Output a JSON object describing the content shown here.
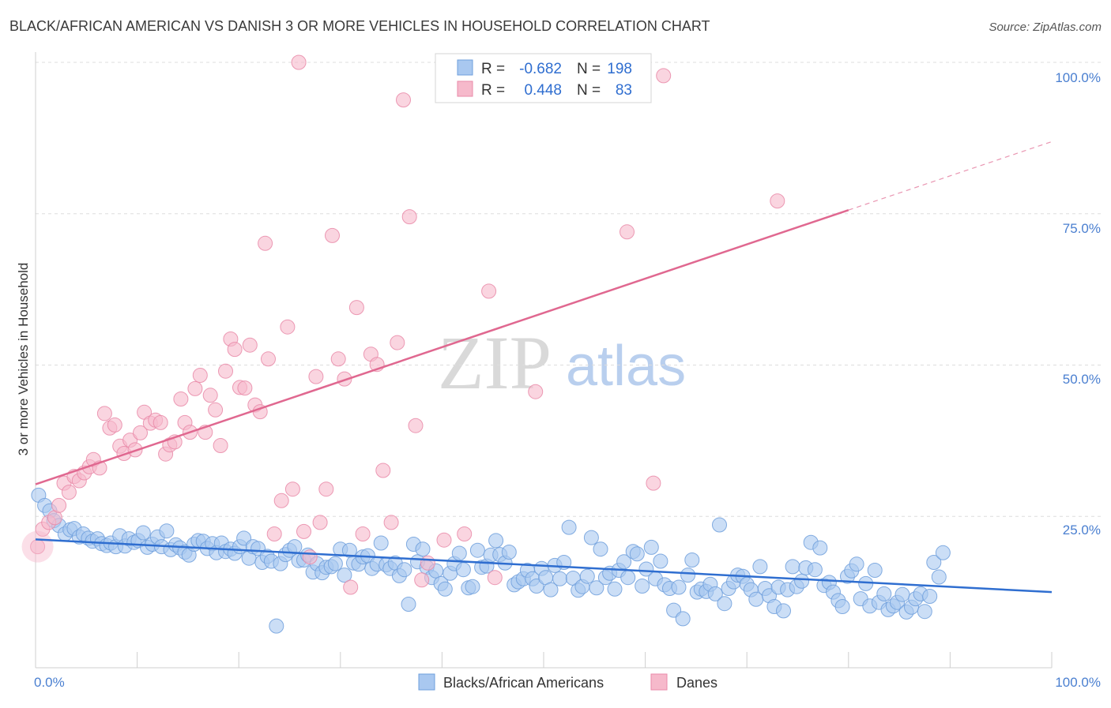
{
  "title": "BLACK/AFRICAN AMERICAN VS DANISH 3 OR MORE VEHICLES IN HOUSEHOLD CORRELATION CHART",
  "source": "Source: ZipAtlas.com",
  "watermark": {
    "zip": "ZIP",
    "atlas": "atlas"
  },
  "legend": {
    "r_label": "R =",
    "n_label": "N =",
    "rows": [
      {
        "r": "-0.682",
        "n": "198"
      },
      {
        "r": "0.448",
        "n": "83"
      }
    ]
  },
  "colors": {
    "blue_fill": "#a9c8f0",
    "blue_stroke": "#6e9fdc",
    "blue_line": "#2f6ed0",
    "pink_fill": "#f6b9cb",
    "pink_stroke": "#e98aa8",
    "pink_line": "#e06890",
    "grid": "#dddddd",
    "tick_text": "#4a7fd0"
  },
  "chart_data": {
    "type": "scatter",
    "xlabel": "",
    "ylabel": "3 or more Vehicles in Household",
    "xlim": [
      0,
      100
    ],
    "ylim": [
      0,
      100
    ],
    "x_tick_labels": [
      "0.0%",
      "100.0%"
    ],
    "y_tick_labels": [
      "25.0%",
      "50.0%",
      "75.0%",
      "100.0%"
    ],
    "y_ticks": [
      25,
      50,
      75,
      100
    ],
    "grid": true,
    "legend_position": "top-center",
    "series": [
      {
        "name": "Blacks/African Americans",
        "color": "#a9c8f0",
        "trend": {
          "x": [
            0,
            100
          ],
          "y": [
            21.2,
            12.5
          ],
          "extrapolated_from": 100
        },
        "points": [
          [
            0.3,
            28.5
          ],
          [
            0.9,
            26.8
          ],
          [
            1.4,
            25.9
          ],
          [
            1.8,
            24.3
          ],
          [
            2.3,
            23.5
          ],
          [
            2.9,
            22.1
          ],
          [
            3.4,
            22.8
          ],
          [
            3.8,
            23.0
          ],
          [
            4.3,
            21.6
          ],
          [
            4.7,
            22.1
          ],
          [
            5.2,
            21.4
          ],
          [
            5.6,
            20.9
          ],
          [
            6.1,
            21.3
          ],
          [
            6.5,
            20.5
          ],
          [
            7.0,
            20.2
          ],
          [
            7.4,
            20.6
          ],
          [
            7.9,
            20.0
          ],
          [
            8.3,
            21.8
          ],
          [
            8.8,
            20.1
          ],
          [
            9.2,
            21.3
          ],
          [
            9.7,
            20.7
          ],
          [
            10.1,
            21.0
          ],
          [
            10.6,
            22.3
          ],
          [
            11.0,
            19.9
          ],
          [
            11.5,
            20.4
          ],
          [
            12.0,
            21.6
          ],
          [
            12.4,
            20.0
          ],
          [
            12.9,
            22.6
          ],
          [
            13.3,
            19.5
          ],
          [
            13.8,
            20.3
          ],
          [
            14.2,
            19.8
          ],
          [
            14.7,
            19.1
          ],
          [
            15.1,
            18.6
          ],
          [
            15.6,
            20.4
          ],
          [
            16.0,
            21.0
          ],
          [
            16.5,
            20.9
          ],
          [
            16.9,
            19.7
          ],
          [
            17.4,
            20.5
          ],
          [
            17.8,
            19.0
          ],
          [
            18.3,
            20.6
          ],
          [
            18.7,
            19.2
          ],
          [
            19.2,
            19.6
          ],
          [
            19.6,
            18.9
          ],
          [
            20.1,
            20.0
          ],
          [
            20.5,
            21.4
          ],
          [
            21.0,
            18.1
          ],
          [
            21.4,
            20.0
          ],
          [
            21.9,
            19.7
          ],
          [
            22.3,
            17.4
          ],
          [
            22.8,
            18.4
          ],
          [
            23.2,
            17.6
          ],
          [
            23.7,
            6.9
          ],
          [
            24.1,
            17.2
          ],
          [
            24.6,
            18.7
          ],
          [
            25.0,
            19.4
          ],
          [
            25.5,
            20.0
          ],
          [
            25.9,
            17.7
          ],
          [
            26.4,
            17.8
          ],
          [
            26.8,
            18.6
          ],
          [
            27.3,
            15.8
          ],
          [
            27.7,
            17.2
          ],
          [
            28.2,
            15.7
          ],
          [
            28.6,
            16.6
          ],
          [
            29.1,
            16.7
          ],
          [
            29.5,
            17.2
          ],
          [
            30.0,
            19.6
          ],
          [
            30.4,
            15.3
          ],
          [
            30.9,
            19.4
          ],
          [
            31.3,
            17.3
          ],
          [
            31.8,
            17.1
          ],
          [
            32.2,
            18.3
          ],
          [
            32.7,
            18.5
          ],
          [
            33.1,
            16.4
          ],
          [
            33.6,
            17.1
          ],
          [
            34.0,
            20.6
          ],
          [
            34.5,
            17.0
          ],
          [
            34.9,
            16.4
          ],
          [
            35.4,
            17.3
          ],
          [
            35.8,
            15.2
          ],
          [
            36.3,
            16.2
          ],
          [
            36.7,
            10.5
          ],
          [
            37.2,
            20.4
          ],
          [
            37.6,
            17.5
          ],
          [
            38.1,
            19.6
          ],
          [
            38.5,
            16.6
          ],
          [
            39.0,
            14.9
          ],
          [
            39.4,
            16.0
          ],
          [
            39.9,
            13.9
          ],
          [
            40.3,
            13.0
          ],
          [
            40.8,
            15.6
          ],
          [
            41.2,
            17.2
          ],
          [
            41.7,
            18.9
          ],
          [
            42.1,
            16.2
          ],
          [
            42.6,
            13.2
          ],
          [
            43.0,
            13.4
          ],
          [
            43.5,
            19.4
          ],
          [
            43.9,
            16.6
          ],
          [
            44.4,
            16.8
          ],
          [
            44.8,
            18.6
          ],
          [
            45.3,
            21.0
          ],
          [
            45.7,
            18.7
          ],
          [
            46.2,
            17.3
          ],
          [
            46.6,
            19.1
          ],
          [
            47.1,
            13.7
          ],
          [
            47.5,
            14.2
          ],
          [
            48.0,
            14.7
          ],
          [
            48.4,
            16.1
          ],
          [
            48.9,
            14.7
          ],
          [
            49.3,
            13.5
          ],
          [
            49.8,
            16.4
          ],
          [
            50.2,
            14.9
          ],
          [
            50.7,
            12.9
          ],
          [
            51.1,
            16.9
          ],
          [
            51.6,
            14.7
          ],
          [
            52.0,
            17.4
          ],
          [
            52.5,
            23.2
          ],
          [
            52.9,
            14.8
          ],
          [
            53.4,
            12.8
          ],
          [
            53.8,
            13.4
          ],
          [
            54.3,
            15.1
          ],
          [
            54.7,
            21.5
          ],
          [
            55.2,
            13.2
          ],
          [
            55.6,
            19.6
          ],
          [
            56.1,
            14.9
          ],
          [
            56.5,
            15.6
          ],
          [
            57.0,
            13.0
          ],
          [
            57.4,
            16.1
          ],
          [
            57.9,
            17.5
          ],
          [
            58.3,
            14.9
          ],
          [
            58.8,
            19.2
          ],
          [
            59.2,
            18.8
          ],
          [
            59.7,
            13.5
          ],
          [
            60.1,
            16.3
          ],
          [
            60.6,
            19.9
          ],
          [
            61.0,
            14.7
          ],
          [
            61.5,
            17.6
          ],
          [
            61.9,
            13.7
          ],
          [
            62.4,
            13.1
          ],
          [
            62.8,
            9.5
          ],
          [
            63.3,
            13.3
          ],
          [
            63.7,
            8.1
          ],
          [
            64.2,
            15.3
          ],
          [
            64.6,
            17.8
          ],
          [
            65.1,
            12.5
          ],
          [
            65.5,
            13.0
          ],
          [
            66.0,
            12.6
          ],
          [
            66.4,
            13.8
          ],
          [
            66.9,
            12.2
          ],
          [
            67.3,
            23.6
          ],
          [
            67.8,
            10.6
          ],
          [
            68.2,
            13.1
          ],
          [
            68.7,
            14.2
          ],
          [
            69.1,
            15.3
          ],
          [
            69.6,
            15.1
          ],
          [
            70.0,
            13.8
          ],
          [
            70.4,
            12.9
          ],
          [
            70.9,
            11.3
          ],
          [
            71.3,
            16.7
          ],
          [
            71.8,
            13.1
          ],
          [
            72.2,
            11.9
          ],
          [
            72.7,
            10.1
          ],
          [
            73.1,
            13.3
          ],
          [
            73.6,
            9.4
          ],
          [
            74.0,
            12.9
          ],
          [
            74.5,
            16.7
          ],
          [
            74.9,
            13.4
          ],
          [
            75.4,
            14.3
          ],
          [
            75.8,
            16.5
          ],
          [
            76.3,
            20.7
          ],
          [
            76.7,
            16.2
          ],
          [
            77.2,
            19.8
          ],
          [
            77.6,
            13.6
          ],
          [
            78.1,
            14.1
          ],
          [
            78.5,
            12.5
          ],
          [
            79.0,
            11.1
          ],
          [
            79.4,
            10.1
          ],
          [
            79.9,
            15.1
          ],
          [
            80.3,
            16.0
          ],
          [
            80.8,
            17.1
          ],
          [
            81.2,
            11.4
          ],
          [
            81.7,
            13.9
          ],
          [
            82.1,
            10.2
          ],
          [
            82.6,
            16.1
          ],
          [
            83.0,
            10.8
          ],
          [
            83.5,
            12.2
          ],
          [
            83.9,
            9.6
          ],
          [
            84.4,
            10.2
          ],
          [
            84.8,
            10.8
          ],
          [
            85.3,
            12.1
          ],
          [
            85.7,
            9.2
          ],
          [
            86.2,
            10.0
          ],
          [
            86.6,
            11.4
          ],
          [
            87.1,
            12.2
          ],
          [
            87.5,
            9.3
          ],
          [
            88.0,
            11.8
          ],
          [
            88.4,
            17.4
          ],
          [
            88.9,
            15.0
          ],
          [
            89.3,
            19.0
          ]
        ]
      },
      {
        "name": "Danes",
        "color": "#f6b9cb",
        "trend": {
          "x": [
            0,
            80
          ],
          "y": [
            30.3,
            75.6
          ],
          "extrapolated_to": 100,
          "y_at_100": 86.9
        },
        "points": [
          [
            0.2,
            20.0
          ],
          [
            0.7,
            22.9
          ],
          [
            1.3,
            24.0
          ],
          [
            1.9,
            24.8
          ],
          [
            2.3,
            26.8
          ],
          [
            2.8,
            30.5
          ],
          [
            3.3,
            29.0
          ],
          [
            3.8,
            31.6
          ],
          [
            4.3,
            30.9
          ],
          [
            4.8,
            32.2
          ],
          [
            5.3,
            33.2
          ],
          [
            5.7,
            34.4
          ],
          [
            6.3,
            33.0
          ],
          [
            6.8,
            42.0
          ],
          [
            7.3,
            39.6
          ],
          [
            7.8,
            40.1
          ],
          [
            8.3,
            36.6
          ],
          [
            8.7,
            35.4
          ],
          [
            9.3,
            37.6
          ],
          [
            9.8,
            36.0
          ],
          [
            10.3,
            38.8
          ],
          [
            10.7,
            42.2
          ],
          [
            11.3,
            40.4
          ],
          [
            11.8,
            40.9
          ],
          [
            12.3,
            40.5
          ],
          [
            12.8,
            35.3
          ],
          [
            13.2,
            36.8
          ],
          [
            13.7,
            37.3
          ],
          [
            14.3,
            44.4
          ],
          [
            14.7,
            40.5
          ],
          [
            15.2,
            38.9
          ],
          [
            15.7,
            46.1
          ],
          [
            16.2,
            48.3
          ],
          [
            16.7,
            38.9
          ],
          [
            17.2,
            45.0
          ],
          [
            17.7,
            42.6
          ],
          [
            18.2,
            36.7
          ],
          [
            18.7,
            49.0
          ],
          [
            19.2,
            54.3
          ],
          [
            19.6,
            52.6
          ],
          [
            20.1,
            46.3
          ],
          [
            20.6,
            46.2
          ],
          [
            21.1,
            53.3
          ],
          [
            21.6,
            43.4
          ],
          [
            22.1,
            42.3
          ],
          [
            22.6,
            70.1
          ],
          [
            22.9,
            51.0
          ],
          [
            23.5,
            22.1
          ],
          [
            24.2,
            27.6
          ],
          [
            24.8,
            56.3
          ],
          [
            25.3,
            29.5
          ],
          [
            25.9,
            100.0
          ],
          [
            26.4,
            22.5
          ],
          [
            27.0,
            18.3
          ],
          [
            27.6,
            48.1
          ],
          [
            28.0,
            24.0
          ],
          [
            28.6,
            29.5
          ],
          [
            29.2,
            71.4
          ],
          [
            29.8,
            51.0
          ],
          [
            30.4,
            47.7
          ],
          [
            31.0,
            13.3
          ],
          [
            31.6,
            59.5
          ],
          [
            32.2,
            22.1
          ],
          [
            33.0,
            51.8
          ],
          [
            33.6,
            50.1
          ],
          [
            34.2,
            32.6
          ],
          [
            35.0,
            24.0
          ],
          [
            35.6,
            53.7
          ],
          [
            36.2,
            93.8
          ],
          [
            36.8,
            74.5
          ],
          [
            37.4,
            40.0
          ],
          [
            38.0,
            14.5
          ],
          [
            38.6,
            17.3
          ],
          [
            40.2,
            21.1
          ],
          [
            42.2,
            22.1
          ],
          [
            44.6,
            62.2
          ],
          [
            45.2,
            14.9
          ],
          [
            49.2,
            45.6
          ],
          [
            58.2,
            72.0
          ],
          [
            60.8,
            30.5
          ],
          [
            61.8,
            97.8
          ],
          [
            73.0,
            77.1
          ]
        ]
      }
    ]
  },
  "bottom_legend": [
    "Blacks/African Americans",
    "Danes"
  ]
}
